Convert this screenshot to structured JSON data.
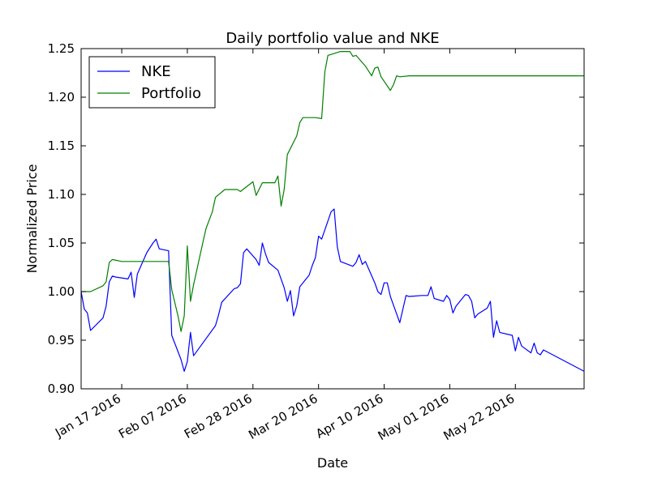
{
  "chart_data": {
    "type": "line",
    "title": "Daily portfolio value and NKE",
    "xlabel": "Date",
    "ylabel": "Normalized Price",
    "xlim": [
      "2016-01-04",
      "2016-06-13"
    ],
    "ylim": [
      0.9,
      1.25
    ],
    "x_ticks": [
      {
        "date": "2016-01-17",
        "label": "Jan 17 2016"
      },
      {
        "date": "2016-02-07",
        "label": "Feb 07 2016"
      },
      {
        "date": "2016-02-28",
        "label": "Feb 28 2016"
      },
      {
        "date": "2016-03-20",
        "label": "Mar 20 2016"
      },
      {
        "date": "2016-04-10",
        "label": "Apr 10 2016"
      },
      {
        "date": "2016-05-01",
        "label": "May 01 2016"
      },
      {
        "date": "2016-05-22",
        "label": "May 22 2016"
      }
    ],
    "y_ticks": [
      {
        "value": 0.9,
        "label": "0.90"
      },
      {
        "value": 0.95,
        "label": "0.95"
      },
      {
        "value": 1.0,
        "label": "1.00"
      },
      {
        "value": 1.05,
        "label": "1.05"
      },
      {
        "value": 1.1,
        "label": "1.10"
      },
      {
        "value": 1.15,
        "label": "1.15"
      },
      {
        "value": 1.2,
        "label": "1.20"
      },
      {
        "value": 1.25,
        "label": "1.25"
      }
    ],
    "grid": false,
    "legend": "top-left",
    "series": [
      {
        "name": "NKE",
        "color": "#0000ff",
        "points": [
          [
            "2016-01-04",
            1.0
          ],
          [
            "2016-01-05",
            0.982
          ],
          [
            "2016-01-06",
            0.978
          ],
          [
            "2016-01-07",
            0.96
          ],
          [
            "2016-01-11",
            0.973
          ],
          [
            "2016-01-12",
            0.985
          ],
          [
            "2016-01-13",
            1.01
          ],
          [
            "2016-01-14",
            1.016
          ],
          [
            "2016-01-15",
            1.015
          ],
          [
            "2016-01-19",
            1.013
          ],
          [
            "2016-01-20",
            1.02
          ],
          [
            "2016-01-21",
            0.994
          ],
          [
            "2016-01-22",
            1.018
          ],
          [
            "2016-01-25",
            1.04
          ],
          [
            "2016-01-26",
            1.045
          ],
          [
            "2016-01-27",
            1.05
          ],
          [
            "2016-01-28",
            1.054
          ],
          [
            "2016-01-29",
            1.044
          ],
          [
            "2016-02-01",
            1.042
          ],
          [
            "2016-02-02",
            0.955
          ],
          [
            "2016-02-05",
            0.93
          ],
          [
            "2016-02-06",
            0.918
          ],
          [
            "2016-02-07",
            0.928
          ],
          [
            "2016-02-08",
            0.958
          ],
          [
            "2016-02-09",
            0.934
          ],
          [
            "2016-02-16",
            0.965
          ],
          [
            "2016-02-17",
            0.976
          ],
          [
            "2016-02-18",
            0.989
          ],
          [
            "2016-02-22",
            1.003
          ],
          [
            "2016-02-23",
            1.004
          ],
          [
            "2016-02-24",
            1.008
          ],
          [
            "2016-02-25",
            1.04
          ],
          [
            "2016-02-26",
            1.044
          ],
          [
            "2016-02-29",
            1.033
          ],
          [
            "2016-03-01",
            1.027
          ],
          [
            "2016-03-02",
            1.05
          ],
          [
            "2016-03-03",
            1.039
          ],
          [
            "2016-03-04",
            1.03
          ],
          [
            "2016-03-07",
            1.022
          ],
          [
            "2016-03-09",
            1.004
          ],
          [
            "2016-03-10",
            0.99
          ],
          [
            "2016-03-11",
            1.001
          ],
          [
            "2016-03-12",
            0.975
          ],
          [
            "2016-03-13",
            0.985
          ],
          [
            "2016-03-14",
            1.005
          ],
          [
            "2016-03-17",
            1.017
          ],
          [
            "2016-03-18",
            1.027
          ],
          [
            "2016-03-19",
            1.035
          ],
          [
            "2016-03-20",
            1.057
          ],
          [
            "2016-03-21",
            1.054
          ],
          [
            "2016-03-24",
            1.082
          ],
          [
            "2016-03-25",
            1.085
          ],
          [
            "2016-03-26",
            1.046
          ],
          [
            "2016-03-27",
            1.031
          ],
          [
            "2016-03-31",
            1.026
          ],
          [
            "2016-04-01",
            1.03
          ],
          [
            "2016-04-02",
            1.038
          ],
          [
            "2016-04-03",
            1.028
          ],
          [
            "2016-04-04",
            1.031
          ],
          [
            "2016-04-07",
            1.009
          ],
          [
            "2016-04-08",
            1.0
          ],
          [
            "2016-04-09",
            0.997
          ],
          [
            "2016-04-10",
            1.009
          ],
          [
            "2016-04-11",
            1.009
          ],
          [
            "2016-04-12",
            0.995
          ],
          [
            "2016-04-15",
            0.968
          ],
          [
            "2016-04-17",
            0.996
          ],
          [
            "2016-04-18",
            0.995
          ],
          [
            "2016-04-22",
            0.996
          ],
          [
            "2016-04-24",
            0.996
          ],
          [
            "2016-04-25",
            1.005
          ],
          [
            "2016-04-26",
            0.993
          ],
          [
            "2016-04-29",
            0.99
          ],
          [
            "2016-04-30",
            0.996
          ],
          [
            "2016-05-01",
            0.992
          ],
          [
            "2016-05-02",
            0.978
          ],
          [
            "2016-05-03",
            0.985
          ],
          [
            "2016-05-06",
            0.997
          ],
          [
            "2016-05-07",
            0.996
          ],
          [
            "2016-05-08",
            0.99
          ],
          [
            "2016-05-09",
            0.973
          ],
          [
            "2016-05-10",
            0.977
          ],
          [
            "2016-05-13",
            0.983
          ],
          [
            "2016-05-14",
            0.99
          ],
          [
            "2016-05-15",
            0.953
          ],
          [
            "2016-05-16",
            0.97
          ],
          [
            "2016-05-17",
            0.958
          ],
          [
            "2016-05-21",
            0.955
          ],
          [
            "2016-05-22",
            0.939
          ],
          [
            "2016-05-23",
            0.953
          ],
          [
            "2016-05-24",
            0.944
          ],
          [
            "2016-05-27",
            0.937
          ],
          [
            "2016-05-28",
            0.947
          ],
          [
            "2016-05-29",
            0.937
          ],
          [
            "2016-05-30",
            0.935
          ],
          [
            "2016-05-31",
            0.94
          ],
          [
            "2016-06-13",
            0.918
          ]
        ]
      },
      {
        "name": "Portfolio",
        "color": "#008000",
        "points": [
          [
            "2016-01-04",
            1.0
          ],
          [
            "2016-01-07",
            1.0
          ],
          [
            "2016-01-11",
            1.006
          ],
          [
            "2016-01-12",
            1.01
          ],
          [
            "2016-01-13",
            1.03
          ],
          [
            "2016-01-14",
            1.033
          ],
          [
            "2016-01-17",
            1.031
          ],
          [
            "2016-01-20",
            1.031
          ],
          [
            "2016-01-31",
            1.031
          ],
          [
            "2016-02-01",
            1.031
          ],
          [
            "2016-02-02",
            1.002
          ],
          [
            "2016-02-04",
            0.975
          ],
          [
            "2016-02-05",
            0.959
          ],
          [
            "2016-02-06",
            0.975
          ],
          [
            "2016-02-07",
            1.047
          ],
          [
            "2016-02-08",
            0.99
          ],
          [
            "2016-02-09",
            1.007
          ],
          [
            "2016-02-12",
            1.051
          ],
          [
            "2016-02-13",
            1.065
          ],
          [
            "2016-02-15",
            1.082
          ],
          [
            "2016-02-16",
            1.097
          ],
          [
            "2016-02-19",
            1.105
          ],
          [
            "2016-02-23",
            1.105
          ],
          [
            "2016-02-24",
            1.103
          ],
          [
            "2016-02-28",
            1.113
          ],
          [
            "2016-02-29",
            1.099
          ],
          [
            "2016-03-02",
            1.112
          ],
          [
            "2016-03-06",
            1.112
          ],
          [
            "2016-03-07",
            1.119
          ],
          [
            "2016-03-08",
            1.088
          ],
          [
            "2016-03-09",
            1.105
          ],
          [
            "2016-03-10",
            1.141
          ],
          [
            "2016-03-13",
            1.16
          ],
          [
            "2016-03-14",
            1.174
          ],
          [
            "2016-03-15",
            1.179
          ],
          [
            "2016-03-19",
            1.179
          ],
          [
            "2016-03-21",
            1.178
          ],
          [
            "2016-03-22",
            1.226
          ],
          [
            "2016-03-23",
            1.243
          ],
          [
            "2016-03-27",
            1.247
          ],
          [
            "2016-03-30",
            1.247
          ],
          [
            "2016-03-31",
            1.242
          ],
          [
            "2016-04-01",
            1.243
          ],
          [
            "2016-04-04",
            1.232
          ],
          [
            "2016-04-06",
            1.222
          ],
          [
            "2016-04-07",
            1.23
          ],
          [
            "2016-04-08",
            1.231
          ],
          [
            "2016-04-09",
            1.221
          ],
          [
            "2016-04-12",
            1.207
          ],
          [
            "2016-04-13",
            1.213
          ],
          [
            "2016-04-14",
            1.222
          ],
          [
            "2016-04-15",
            1.221
          ],
          [
            "2016-04-18",
            1.222
          ],
          [
            "2016-04-30",
            1.222
          ],
          [
            "2016-06-13",
            1.222
          ]
        ]
      }
    ]
  }
}
